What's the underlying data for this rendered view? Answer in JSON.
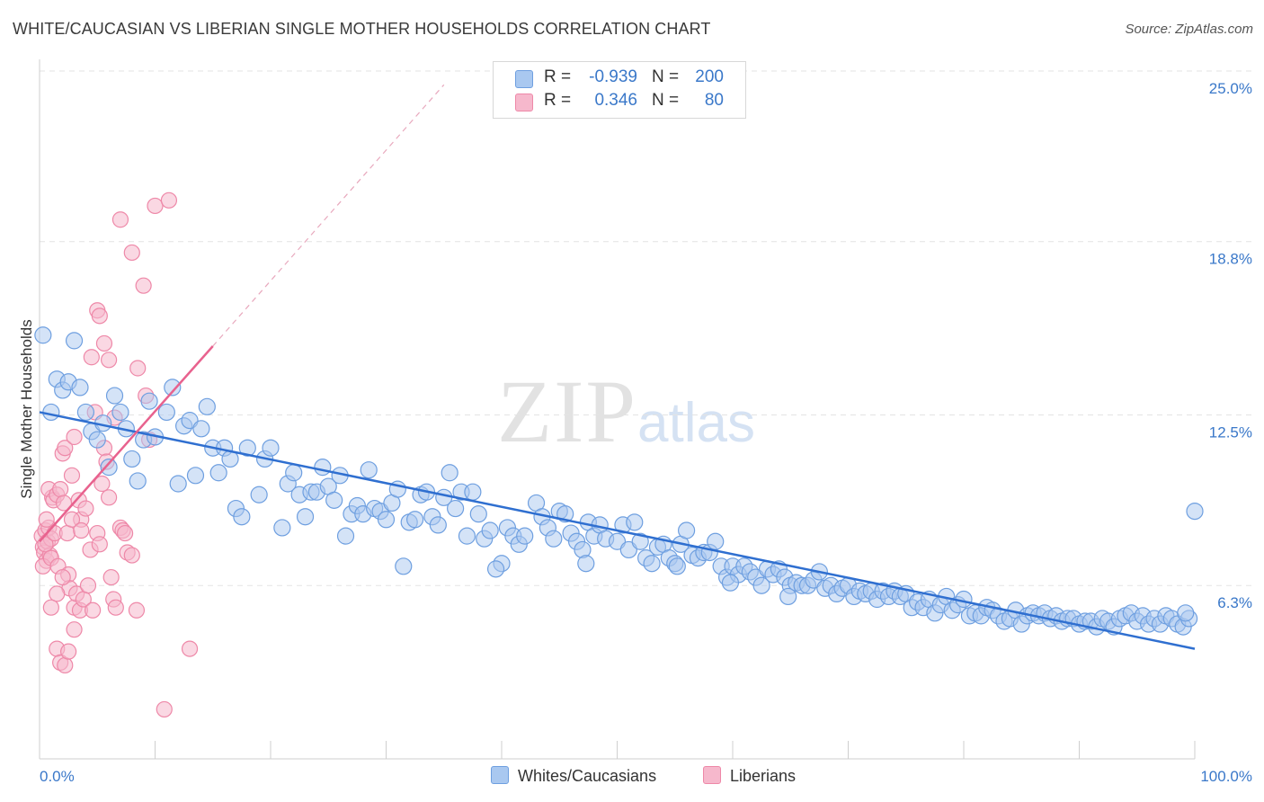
{
  "header": {
    "title": "WHITE/CAUCASIAN VS LIBERIAN SINGLE MOTHER HOUSEHOLDS CORRELATION CHART",
    "source": "Source: ZipAtlas.com"
  },
  "watermark": {
    "zip": "ZIP",
    "atlas": "atlas"
  },
  "legend": {
    "rows": [
      {
        "r_label": "R =",
        "r_value": "-0.939",
        "n_label": "N =",
        "n_value": "200",
        "color": "#a9c8f0"
      },
      {
        "r_label": "R =",
        "r_value": "0.346",
        "n_label": "N =",
        "n_value": "80",
        "color": "#f6b8cc"
      }
    ]
  },
  "bottom_legend": [
    {
      "label": "Whites/Caucasians",
      "color": "#a9c8f0"
    },
    {
      "label": "Liberians",
      "color": "#f6b8cc"
    }
  ],
  "colors": {
    "blue_fill": "#a9c8f0",
    "blue_stroke": "#6e9fe0",
    "blue_line": "#2f6fd0",
    "pink_fill": "#f6b8cc",
    "pink_stroke": "#ee88a8",
    "pink_line": "#e8628e",
    "grid": "#e3e3e3",
    "tick_text": "#3a78c9"
  },
  "chart_data": {
    "type": "scatter",
    "title": "WHITE/CAUCASIAN VS LIBERIAN SINGLE MOTHER HOUSEHOLDS CORRELATION CHART",
    "xlabel": "",
    "ylabel": "Single Mother Households",
    "xlim": [
      0,
      100
    ],
    "ylim": [
      0,
      26.5
    ],
    "x_tick_labels": [
      {
        "value": 0,
        "label": "0.0%"
      },
      {
        "value": 100,
        "label": "100.0%"
      }
    ],
    "y_tick_labels": [
      {
        "value": 6.3,
        "label": "6.3%"
      },
      {
        "value": 12.5,
        "label": "12.5%"
      },
      {
        "value": 18.8,
        "label": "18.8%"
      },
      {
        "value": 25.0,
        "label": "25.0%"
      }
    ],
    "grid": true,
    "legend_position": "top-center",
    "series": [
      {
        "name": "Whites/Caucasians",
        "color": "#a9c8f0",
        "trend": {
          "x": [
            0,
            100
          ],
          "y": [
            12.6,
            4.0
          ],
          "style": "solid"
        },
        "points": [
          [
            0.3,
            15.4
          ],
          [
            1,
            12.6
          ],
          [
            1.5,
            13.8
          ],
          [
            2,
            13.4
          ],
          [
            2.5,
            13.7
          ],
          [
            3,
            15.2
          ],
          [
            3.5,
            13.5
          ],
          [
            4,
            12.6
          ],
          [
            4.5,
            11.9
          ],
          [
            5,
            11.6
          ],
          [
            5.5,
            12.2
          ],
          [
            6,
            10.6
          ],
          [
            6.5,
            13.2
          ],
          [
            7,
            12.6
          ],
          [
            7.5,
            12.0
          ],
          [
            8,
            10.9
          ],
          [
            8.5,
            10.1
          ],
          [
            9,
            11.6
          ],
          [
            9.5,
            13.0
          ],
          [
            10,
            11.7
          ],
          [
            11,
            12.6
          ],
          [
            11.5,
            13.5
          ],
          [
            12,
            10.0
          ],
          [
            12.5,
            12.1
          ],
          [
            13,
            12.3
          ],
          [
            13.5,
            10.3
          ],
          [
            14,
            12.0
          ],
          [
            14.5,
            12.8
          ],
          [
            15,
            11.3
          ],
          [
            15.5,
            10.4
          ],
          [
            16,
            11.3
          ],
          [
            16.5,
            10.9
          ],
          [
            17,
            9.1
          ],
          [
            17.5,
            8.8
          ],
          [
            18,
            11.3
          ],
          [
            19,
            9.6
          ],
          [
            19.5,
            10.9
          ],
          [
            20,
            11.3
          ],
          [
            21,
            8.4
          ],
          [
            21.5,
            10.0
          ],
          [
            22,
            10.4
          ],
          [
            22.5,
            9.6
          ],
          [
            23,
            8.8
          ],
          [
            23.5,
            9.7
          ],
          [
            24,
            9.7
          ],
          [
            24.5,
            10.6
          ],
          [
            25,
            9.9
          ],
          [
            25.5,
            9.4
          ],
          [
            26,
            10.3
          ],
          [
            26.5,
            8.1
          ],
          [
            27,
            8.9
          ],
          [
            27.5,
            9.2
          ],
          [
            28,
            8.9
          ],
          [
            28.5,
            10.5
          ],
          [
            29,
            9.1
          ],
          [
            29.5,
            9.0
          ],
          [
            30,
            8.7
          ],
          [
            30.5,
            9.3
          ],
          [
            31,
            9.8
          ],
          [
            31.5,
            7.0
          ],
          [
            32,
            8.6
          ],
          [
            32.5,
            8.7
          ],
          [
            33,
            9.6
          ],
          [
            33.5,
            9.7
          ],
          [
            34,
            8.8
          ],
          [
            34.5,
            8.5
          ],
          [
            35,
            9.5
          ],
          [
            35.5,
            10.4
          ],
          [
            36,
            9.1
          ],
          [
            36.5,
            9.7
          ],
          [
            37,
            8.1
          ],
          [
            37.5,
            9.7
          ],
          [
            38,
            8.9
          ],
          [
            38.5,
            8.0
          ],
          [
            39,
            8.3
          ],
          [
            40,
            7.1
          ],
          [
            40.5,
            8.4
          ],
          [
            41,
            8.1
          ],
          [
            41.5,
            7.8
          ],
          [
            42,
            8.1
          ],
          [
            43,
            9.3
          ],
          [
            43.5,
            8.8
          ],
          [
            44,
            8.4
          ],
          [
            44.5,
            8.0
          ],
          [
            45,
            9.0
          ],
          [
            45.5,
            8.9
          ],
          [
            46,
            8.2
          ],
          [
            46.5,
            7.9
          ],
          [
            47,
            7.6
          ],
          [
            47.5,
            8.6
          ],
          [
            48,
            8.1
          ],
          [
            48.5,
            8.5
          ],
          [
            49,
            8.0
          ],
          [
            50,
            7.9
          ],
          [
            50.5,
            8.5
          ],
          [
            51,
            7.6
          ],
          [
            51.5,
            8.6
          ],
          [
            52,
            7.9
          ],
          [
            52.5,
            7.3
          ],
          [
            53,
            7.1
          ],
          [
            53.5,
            7.7
          ],
          [
            54,
            7.8
          ],
          [
            54.5,
            7.3
          ],
          [
            55,
            7.1
          ],
          [
            55.5,
            7.8
          ],
          [
            56,
            8.3
          ],
          [
            56.5,
            7.4
          ],
          [
            57,
            7.3
          ],
          [
            57.5,
            7.5
          ],
          [
            58,
            7.5
          ],
          [
            58.5,
            7.9
          ],
          [
            59,
            7.0
          ],
          [
            59.5,
            6.6
          ],
          [
            60,
            7.0
          ],
          [
            60.5,
            6.7
          ],
          [
            61,
            7.0
          ],
          [
            61.5,
            6.8
          ],
          [
            62,
            6.6
          ],
          [
            62.5,
            6.3
          ],
          [
            63,
            6.9
          ],
          [
            63.5,
            6.7
          ],
          [
            64,
            6.9
          ],
          [
            64.5,
            6.6
          ],
          [
            65,
            6.3
          ],
          [
            65.5,
            6.4
          ],
          [
            66,
            6.3
          ],
          [
            66.5,
            6.3
          ],
          [
            67,
            6.5
          ],
          [
            67.5,
            6.8
          ],
          [
            68,
            6.2
          ],
          [
            68.5,
            6.3
          ],
          [
            69,
            6.0
          ],
          [
            69.5,
            6.2
          ],
          [
            70,
            6.3
          ],
          [
            70.5,
            5.9
          ],
          [
            71,
            6.1
          ],
          [
            71.5,
            6.0
          ],
          [
            72,
            6.1
          ],
          [
            72.5,
            5.8
          ],
          [
            73,
            6.1
          ],
          [
            73.5,
            5.9
          ],
          [
            74,
            6.1
          ],
          [
            74.5,
            5.9
          ],
          [
            75,
            6.0
          ],
          [
            75.5,
            5.5
          ],
          [
            76,
            5.7
          ],
          [
            76.5,
            5.5
          ],
          [
            77,
            5.8
          ],
          [
            77.5,
            5.3
          ],
          [
            78,
            5.6
          ],
          [
            78.5,
            5.9
          ],
          [
            79,
            5.4
          ],
          [
            79.5,
            5.6
          ],
          [
            80,
            5.8
          ],
          [
            80.5,
            5.2
          ],
          [
            81,
            5.3
          ],
          [
            81.5,
            5.2
          ],
          [
            82,
            5.5
          ],
          [
            82.5,
            5.4
          ],
          [
            83,
            5.2
          ],
          [
            83.5,
            5.0
          ],
          [
            84,
            5.1
          ],
          [
            84.5,
            5.4
          ],
          [
            85,
            4.9
          ],
          [
            85.5,
            5.2
          ],
          [
            86,
            5.3
          ],
          [
            86.5,
            5.2
          ],
          [
            87,
            5.3
          ],
          [
            87.5,
            5.1
          ],
          [
            88,
            5.2
          ],
          [
            88.5,
            5.0
          ],
          [
            89,
            5.1
          ],
          [
            89.5,
            5.1
          ],
          [
            90,
            4.9
          ],
          [
            90.5,
            5.0
          ],
          [
            91,
            5.0
          ],
          [
            91.5,
            4.8
          ],
          [
            92,
            5.1
          ],
          [
            92.5,
            5.0
          ],
          [
            93,
            4.8
          ],
          [
            93.5,
            5.1
          ],
          [
            94,
            5.2
          ],
          [
            94.5,
            5.3
          ],
          [
            95,
            5.0
          ],
          [
            95.5,
            5.2
          ],
          [
            96,
            4.9
          ],
          [
            96.5,
            5.1
          ],
          [
            97,
            4.9
          ],
          [
            97.5,
            5.2
          ],
          [
            98,
            5.1
          ],
          [
            98.5,
            4.9
          ],
          [
            99,
            4.8
          ],
          [
            99.5,
            5.1
          ],
          [
            100,
            9.0
          ],
          [
            99.2,
            5.3
          ],
          [
            64.8,
            5.9
          ],
          [
            59.8,
            6.4
          ],
          [
            55.2,
            7.0
          ],
          [
            47.3,
            7.1
          ],
          [
            39.5,
            6.9
          ]
        ]
      },
      {
        "name": "Liberians",
        "color": "#f6b8cc",
        "trend": {
          "x": [
            0,
            15
          ],
          "y": [
            7.9,
            15.0
          ],
          "style": "solid",
          "extended_to": [
            35,
            24.5
          ],
          "extended_style": "dashed"
        },
        "points": [
          [
            0.2,
            8.1
          ],
          [
            0.3,
            7.7
          ],
          [
            0.4,
            7.5
          ],
          [
            0.5,
            8.3
          ],
          [
            0.6,
            7.2
          ],
          [
            0.7,
            7.9
          ],
          [
            0.8,
            8.4
          ],
          [
            0.9,
            7.4
          ],
          [
            1.0,
            8.0
          ],
          [
            1.1,
            9.5
          ],
          [
            0.3,
            7.0
          ],
          [
            0.5,
            7.8
          ],
          [
            0.6,
            8.7
          ],
          [
            0.8,
            9.8
          ],
          [
            1.0,
            7.3
          ],
          [
            1.2,
            9.4
          ],
          [
            1.3,
            8.2
          ],
          [
            1.5,
            9.6
          ],
          [
            1.6,
            7.0
          ],
          [
            1.8,
            9.8
          ],
          [
            2.0,
            11.1
          ],
          [
            2.1,
            9.3
          ],
          [
            2.2,
            11.3
          ],
          [
            2.4,
            8.2
          ],
          [
            2.5,
            6.7
          ],
          [
            2.6,
            6.2
          ],
          [
            2.8,
            10.3
          ],
          [
            3.0,
            5.5
          ],
          [
            3.2,
            6.0
          ],
          [
            3.5,
            5.4
          ],
          [
            3.0,
            11.7
          ],
          [
            3.4,
            9.4
          ],
          [
            3.6,
            8.7
          ],
          [
            3.8,
            5.8
          ],
          [
            4.0,
            9.1
          ],
          [
            4.2,
            6.3
          ],
          [
            4.4,
            7.6
          ],
          [
            4.6,
            5.4
          ],
          [
            4.8,
            12.6
          ],
          [
            5.0,
            8.2
          ],
          [
            5.2,
            7.8
          ],
          [
            5.4,
            10.0
          ],
          [
            5.6,
            11.3
          ],
          [
            5.8,
            10.8
          ],
          [
            6.0,
            9.5
          ],
          [
            6.2,
            6.6
          ],
          [
            6.4,
            5.8
          ],
          [
            6.6,
            5.5
          ],
          [
            4.5,
            14.6
          ],
          [
            5.0,
            16.3
          ],
          [
            5.2,
            16.1
          ],
          [
            5.6,
            15.1
          ],
          [
            6.0,
            14.5
          ],
          [
            6.5,
            12.4
          ],
          [
            7.0,
            8.4
          ],
          [
            7.2,
            8.3
          ],
          [
            7.4,
            8.2
          ],
          [
            7.6,
            7.5
          ],
          [
            8.0,
            7.4
          ],
          [
            8.4,
            5.4
          ],
          [
            7.0,
            19.6
          ],
          [
            8.0,
            18.4
          ],
          [
            9.0,
            17.2
          ],
          [
            10.0,
            20.1
          ],
          [
            11.2,
            20.3
          ],
          [
            8.5,
            14.2
          ],
          [
            9.2,
            13.2
          ],
          [
            9.5,
            11.6
          ],
          [
            10.8,
            1.8
          ],
          [
            13.0,
            4.0
          ],
          [
            1.5,
            4.0
          ],
          [
            1.8,
            3.5
          ],
          [
            2.2,
            3.4
          ],
          [
            2.5,
            3.9
          ],
          [
            3.0,
            4.7
          ],
          [
            2.0,
            6.6
          ],
          [
            1.5,
            6.0
          ],
          [
            1.0,
            5.5
          ],
          [
            2.8,
            8.7
          ],
          [
            3.6,
            8.3
          ]
        ]
      }
    ]
  },
  "axis": {
    "ylabel": "Single Mother Households",
    "x_min_label": "0.0%",
    "x_max_label": "100.0%"
  }
}
